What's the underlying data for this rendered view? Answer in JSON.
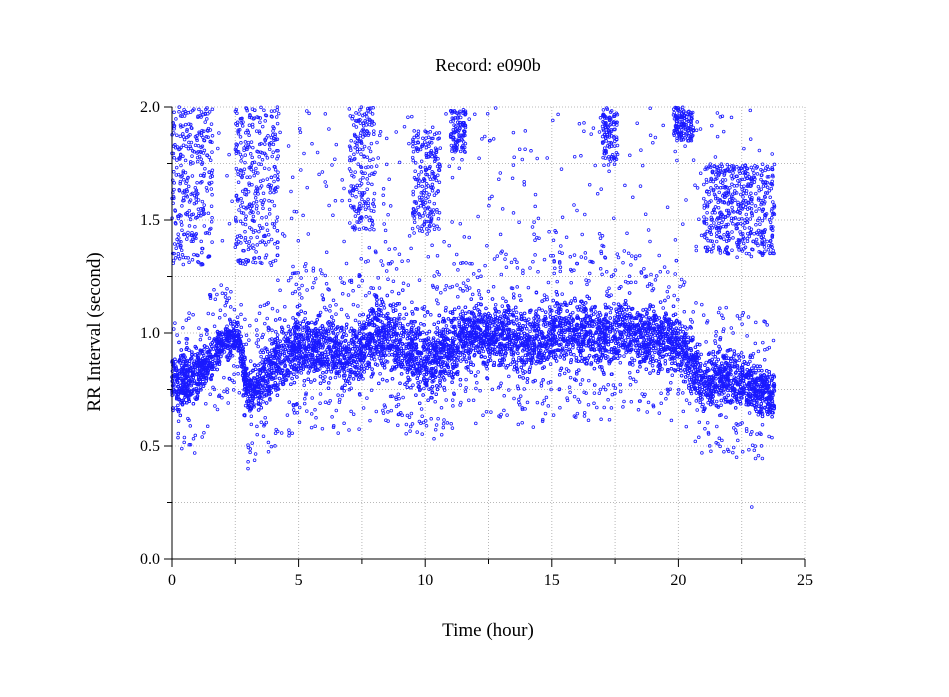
{
  "chart_data": {
    "type": "scatter",
    "title": "Record:  e090b",
    "xlabel": "Time (hour)",
    "ylabel": "RR Interval (second)",
    "xlim": [
      0,
      25
    ],
    "ylim": [
      0.0,
      2.0
    ],
    "x_ticks": [
      "0",
      "5",
      "10",
      "15",
      "20",
      "25"
    ],
    "y_ticks": [
      "0.0",
      "0.5",
      "1.0",
      "1.5",
      "2.0"
    ],
    "grid": true,
    "marker_color": "#1a1aff",
    "series": [
      {
        "points_summary": "dense beat-to-beat RR intervals over ~23.8 hours",
        "main_band": [
          {
            "x": 0.0,
            "y_low": 0.62,
            "y_high": 0.95
          },
          {
            "x": 1.0,
            "y_low": 0.65,
            "y_high": 0.98
          },
          {
            "x": 2.0,
            "y_low": 0.85,
            "y_high": 1.05
          },
          {
            "x": 2.6,
            "y_low": 0.9,
            "y_high": 1.08
          },
          {
            "x": 3.0,
            "y_low": 0.6,
            "y_high": 0.85
          },
          {
            "x": 4.0,
            "y_low": 0.65,
            "y_high": 1.05
          },
          {
            "x": 5.0,
            "y_low": 0.75,
            "y_high": 1.15
          },
          {
            "x": 6.0,
            "y_low": 0.75,
            "y_high": 1.1
          },
          {
            "x": 7.0,
            "y_low": 0.72,
            "y_high": 1.05
          },
          {
            "x": 8.0,
            "y_low": 0.8,
            "y_high": 1.2
          },
          {
            "x": 9.0,
            "y_low": 0.75,
            "y_high": 1.2
          },
          {
            "x": 10.0,
            "y_low": 0.68,
            "y_high": 1.05
          },
          {
            "x": 11.0,
            "y_low": 0.75,
            "y_high": 1.15
          },
          {
            "x": 12.0,
            "y_low": 0.8,
            "y_high": 1.18
          },
          {
            "x": 13.0,
            "y_low": 0.8,
            "y_high": 1.18
          },
          {
            "x": 14.0,
            "y_low": 0.75,
            "y_high": 1.15
          },
          {
            "x": 15.0,
            "y_low": 0.8,
            "y_high": 1.2
          },
          {
            "x": 16.0,
            "y_low": 0.8,
            "y_high": 1.22
          },
          {
            "x": 17.0,
            "y_low": 0.78,
            "y_high": 1.18
          },
          {
            "x": 18.0,
            "y_low": 0.82,
            "y_high": 1.2
          },
          {
            "x": 19.0,
            "y_low": 0.8,
            "y_high": 1.18
          },
          {
            "x": 20.0,
            "y_low": 0.78,
            "y_high": 1.12
          },
          {
            "x": 21.0,
            "y_low": 0.62,
            "y_high": 0.95
          },
          {
            "x": 22.0,
            "y_low": 0.65,
            "y_high": 0.98
          },
          {
            "x": 23.0,
            "y_low": 0.62,
            "y_high": 0.9
          },
          {
            "x": 23.8,
            "y_low": 0.58,
            "y_high": 0.85
          }
        ],
        "upper_clusters": [
          {
            "x_from": 0.0,
            "x_to": 1.6,
            "y_low": 1.3,
            "y_high": 2.0
          },
          {
            "x_from": 2.5,
            "x_to": 4.2,
            "y_low": 1.3,
            "y_high": 2.0
          },
          {
            "x_from": 7.0,
            "x_to": 8.0,
            "y_low": 1.45,
            "y_high": 2.0
          },
          {
            "x_from": 9.5,
            "x_to": 10.6,
            "y_low": 1.45,
            "y_high": 1.9
          },
          {
            "x_from": 11.0,
            "x_to": 11.6,
            "y_low": 1.8,
            "y_high": 2.0
          },
          {
            "x_from": 17.0,
            "x_to": 17.6,
            "y_low": 1.75,
            "y_high": 2.0
          },
          {
            "x_from": 19.8,
            "x_to": 20.6,
            "y_low": 1.85,
            "y_high": 2.0
          },
          {
            "x_from": 21.0,
            "x_to": 23.8,
            "y_low": 1.35,
            "y_high": 1.75
          }
        ]
      }
    ]
  }
}
